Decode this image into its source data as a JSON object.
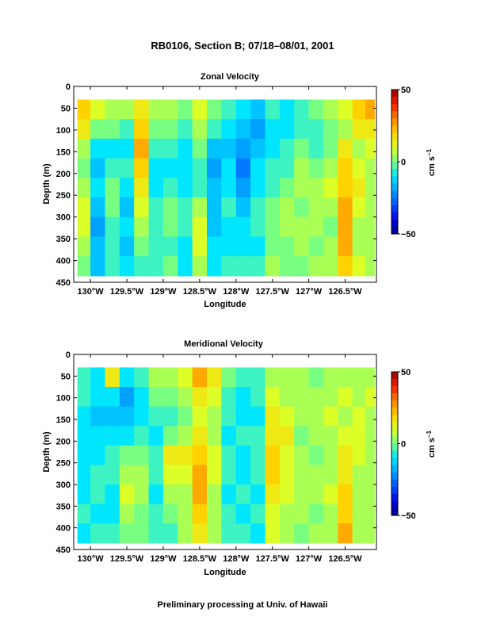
{
  "title": "RB0106, Section B; 07/18–08/01, 2001",
  "footer": "Preliminary processing at Univ. of Hawaii",
  "chart_data": [
    {
      "type": "heatmap",
      "title": "Zonal Velocity",
      "xlabel": "Longitude",
      "ylabel": "Depth (m)",
      "x_ticks": [
        "130°W",
        "129.5°W",
        "129°W",
        "128.5°W",
        "128°W",
        "127.5°W",
        "127°W",
        "126.5°W"
      ],
      "x_tick_values": [
        -130,
        -129.5,
        -129,
        -128.5,
        -128,
        -127.5,
        -127,
        -126.5
      ],
      "xlim": [
        -130.23,
        -126.07
      ],
      "y_ticks": [
        "0",
        "50",
        "100",
        "150",
        "200",
        "250",
        "300",
        "350",
        "400",
        "450"
      ],
      "y_tick_values": [
        0,
        50,
        100,
        150,
        200,
        250,
        300,
        350,
        400,
        450
      ],
      "ylim": [
        0,
        450
      ],
      "data_depth_range": [
        30,
        435
      ],
      "colorbar": {
        "ticks": [
          "50",
          "0",
          "−50"
        ],
        "tick_values": [
          50,
          0,
          -50
        ],
        "label": "cm s",
        "label_sup": "−1"
      },
      "grid": false,
      "columns": [
        {
          "lon": -130.1,
          "values": [
            20,
            15,
            5,
            0,
            5,
            10,
            10,
            5,
            0
          ]
        },
        {
          "lon": -129.9,
          "values": [
            10,
            0,
            -10,
            -15,
            -10,
            -15,
            -20,
            -15,
            -15
          ]
        },
        {
          "lon": -129.7,
          "values": [
            5,
            0,
            -10,
            -5,
            0,
            0,
            -5,
            -5,
            -5
          ]
        },
        {
          "lon": -129.5,
          "values": [
            5,
            -5,
            -10,
            -5,
            -10,
            -15,
            -10,
            -15,
            -10
          ]
        },
        {
          "lon": -129.3,
          "values": [
            15,
            20,
            25,
            20,
            15,
            10,
            5,
            0,
            -5
          ]
        },
        {
          "lon": -129.1,
          "values": [
            5,
            0,
            -5,
            -10,
            -10,
            -5,
            -5,
            -5,
            -5
          ]
        },
        {
          "lon": -128.9,
          "values": [
            5,
            0,
            -5,
            -10,
            -5,
            0,
            0,
            -5,
            0
          ]
        },
        {
          "lon": -128.7,
          "values": [
            0,
            -5,
            -10,
            -10,
            -10,
            -5,
            -5,
            -10,
            -10
          ]
        },
        {
          "lon": -128.5,
          "values": [
            10,
            5,
            0,
            -5,
            -5,
            5,
            10,
            10,
            5
          ]
        },
        {
          "lon": -128.3,
          "values": [
            0,
            -5,
            -15,
            -20,
            -15,
            -15,
            -15,
            -10,
            -10
          ]
        },
        {
          "lon": -128.1,
          "values": [
            -5,
            -10,
            -15,
            -10,
            -10,
            -5,
            -10,
            -10,
            -5
          ]
        },
        {
          "lon": -127.9,
          "values": [
            -10,
            -15,
            -20,
            -25,
            -20,
            -15,
            -10,
            -10,
            -5
          ]
        },
        {
          "lon": -127.7,
          "values": [
            -15,
            -20,
            -15,
            -10,
            -10,
            -5,
            -5,
            -10,
            -5
          ]
        },
        {
          "lon": -127.5,
          "values": [
            -5,
            -10,
            -10,
            -5,
            -5,
            0,
            0,
            0,
            5
          ]
        },
        {
          "lon": -127.3,
          "values": [
            -10,
            -10,
            -5,
            -5,
            0,
            5,
            5,
            0,
            0
          ]
        },
        {
          "lon": -127.1,
          "values": [
            -5,
            -5,
            0,
            5,
            5,
            0,
            5,
            5,
            0
          ]
        },
        {
          "lon": -126.9,
          "values": [
            0,
            -5,
            -5,
            0,
            5,
            5,
            5,
            0,
            5
          ]
        },
        {
          "lon": -126.7,
          "values": [
            5,
            0,
            0,
            5,
            10,
            5,
            0,
            5,
            5
          ]
        },
        {
          "lon": -126.5,
          "values": [
            10,
            5,
            15,
            20,
            20,
            25,
            25,
            25,
            20
          ]
        },
        {
          "lon": -126.3,
          "values": [
            20,
            15,
            5,
            10,
            15,
            10,
            5,
            5,
            10
          ]
        },
        {
          "lon": -126.15,
          "values": [
            25,
            15,
            10,
            5,
            5,
            5,
            5,
            5,
            5
          ]
        }
      ]
    },
    {
      "type": "heatmap",
      "title": "Meridional Velocity",
      "xlabel": "Longitude",
      "ylabel": "Depth (m)",
      "x_ticks": [
        "130°W",
        "129.5°W",
        "129°W",
        "128.5°W",
        "128°W",
        "127.5°W",
        "127°W",
        "126.5°W"
      ],
      "x_tick_values": [
        -130,
        -129.5,
        -129,
        -128.5,
        -128,
        -127.5,
        -127,
        -126.5
      ],
      "xlim": [
        -130.23,
        -126.07
      ],
      "y_ticks": [
        "0",
        "50",
        "100",
        "150",
        "200",
        "250",
        "300",
        "350",
        "400",
        "450"
      ],
      "y_tick_values": [
        0,
        50,
        100,
        150,
        200,
        250,
        300,
        350,
        400,
        450
      ],
      "ylim": [
        0,
        450
      ],
      "data_depth_range": [
        30,
        435
      ],
      "colorbar": {
        "ticks": [
          "50",
          "0",
          "−50"
        ],
        "tick_values": [
          50,
          0,
          -50
        ],
        "label": "cm s",
        "label_sup": "−1"
      },
      "grid": false,
      "columns": [
        {
          "lon": -130.1,
          "values": [
            -5,
            -5,
            -10,
            -10,
            -10,
            -10,
            -10,
            -5,
            -10
          ]
        },
        {
          "lon": -129.9,
          "values": [
            -10,
            -10,
            -15,
            -10,
            -10,
            -5,
            -5,
            -10,
            -5
          ]
        },
        {
          "lon": -129.7,
          "values": [
            15,
            -10,
            -15,
            -10,
            -5,
            -5,
            -10,
            -10,
            -5
          ]
        },
        {
          "lon": -129.5,
          "values": [
            -10,
            -20,
            -15,
            -10,
            0,
            5,
            10,
            5,
            0
          ]
        },
        {
          "lon": -129.3,
          "values": [
            -5,
            -10,
            -10,
            -5,
            0,
            5,
            5,
            0,
            0
          ]
        },
        {
          "lon": -129.1,
          "values": [
            5,
            0,
            -5,
            -10,
            -5,
            -5,
            -10,
            -5,
            -5
          ]
        },
        {
          "lon": -128.9,
          "values": [
            5,
            0,
            -5,
            0,
            15,
            10,
            5,
            0,
            -5
          ]
        },
        {
          "lon": -128.7,
          "values": [
            10,
            5,
            0,
            5,
            15,
            10,
            5,
            5,
            5
          ]
        },
        {
          "lon": -128.5,
          "values": [
            25,
            15,
            10,
            15,
            20,
            25,
            25,
            20,
            15
          ]
        },
        {
          "lon": -128.3,
          "values": [
            15,
            10,
            5,
            5,
            10,
            10,
            5,
            5,
            5
          ]
        },
        {
          "lon": -128.1,
          "values": [
            0,
            -5,
            -5,
            -10,
            -5,
            -5,
            -10,
            -5,
            -5
          ]
        },
        {
          "lon": -127.9,
          "values": [
            -5,
            -10,
            -10,
            -5,
            -10,
            -10,
            -5,
            -10,
            -5
          ]
        },
        {
          "lon": -127.7,
          "values": [
            -5,
            -5,
            -10,
            -5,
            -5,
            -5,
            -10,
            -5,
            -10
          ]
        },
        {
          "lon": -127.5,
          "values": [
            5,
            10,
            15,
            15,
            20,
            20,
            15,
            10,
            10
          ]
        },
        {
          "lon": -127.3,
          "values": [
            5,
            5,
            10,
            15,
            10,
            10,
            10,
            5,
            5
          ]
        },
        {
          "lon": -127.1,
          "values": [
            5,
            5,
            5,
            0,
            5,
            5,
            5,
            5,
            0
          ]
        },
        {
          "lon": -126.9,
          "values": [
            0,
            5,
            5,
            5,
            0,
            5,
            5,
            0,
            5
          ]
        },
        {
          "lon": -126.7,
          "values": [
            5,
            5,
            10,
            5,
            5,
            5,
            10,
            5,
            5
          ]
        },
        {
          "lon": -126.5,
          "values": [
            5,
            10,
            5,
            10,
            15,
            15,
            20,
            20,
            25
          ]
        },
        {
          "lon": -126.3,
          "values": [
            5,
            5,
            10,
            10,
            10,
            5,
            5,
            5,
            5
          ]
        },
        {
          "lon": -126.15,
          "values": [
            5,
            10,
            5,
            5,
            5,
            5,
            5,
            5,
            5
          ]
        }
      ]
    }
  ]
}
